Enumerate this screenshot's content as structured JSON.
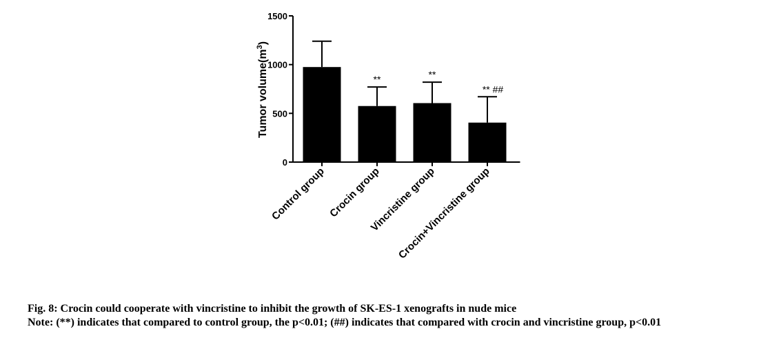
{
  "caption": {
    "title": "Fig. 8: Crocin could cooperate with vincristine to inhibit the growth of SK-ES-1 xenografts in nude mice",
    "note": "Note: (**) indicates that compared to control group, the p<0.01; (##) indicates that compared with crocin and vincristine group, p<0.01"
  },
  "chart_data": {
    "type": "bar",
    "title": "",
    "xlabel": "",
    "ylabel": "Tumor volume(m³)",
    "ylim": [
      0,
      1500
    ],
    "yticks": [
      0,
      500,
      1000,
      1500
    ],
    "grid": false,
    "categories": [
      "Control group",
      "Crocin group",
      "Vincristine group",
      "Crocin+Vincristine group"
    ],
    "values": [
      975,
      575,
      605,
      405
    ],
    "error_upper": [
      1240,
      770,
      820,
      670
    ],
    "annotations": [
      "",
      "**",
      "**",
      "** ##"
    ],
    "colors": {
      "bar": "#000000"
    }
  }
}
